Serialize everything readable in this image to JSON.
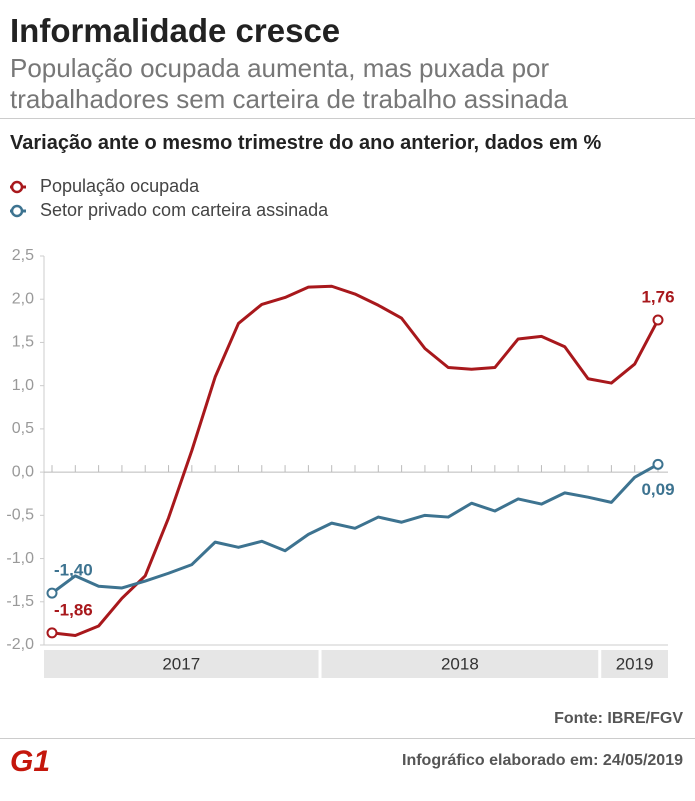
{
  "header": {
    "title": "Informalidade cresce",
    "subtitle": "População ocupada aumenta, mas puxada por trabalhadores sem carteira de trabalho assinada"
  },
  "chart_data": {
    "type": "line",
    "title": "Variação ante o mesmo trimestre do ano anterior, dados em %",
    "categories": [
      null,
      null,
      null,
      null,
      null,
      null,
      null,
      null,
      null,
      null,
      null,
      null,
      null,
      null,
      null,
      null,
      null,
      null,
      null,
      null,
      null,
      null,
      null,
      null,
      null,
      null,
      null
    ],
    "x_groups": [
      {
        "label": "2017",
        "count": 12
      },
      {
        "label": "2018",
        "count": 12
      },
      {
        "label": "2019",
        "count": 3
      }
    ],
    "series": [
      {
        "name": "População ocupada",
        "color": "#a8181c",
        "values": [
          -1.86,
          -1.89,
          -1.78,
          -1.46,
          -1.2,
          -0.53,
          0.25,
          1.1,
          1.72,
          1.94,
          2.02,
          2.14,
          2.15,
          2.06,
          1.93,
          1.78,
          1.43,
          1.21,
          1.19,
          1.21,
          1.54,
          1.57,
          1.45,
          1.08,
          1.03,
          1.25,
          1.76
        ],
        "value_labels": [
          "-1,86",
          null,
          null,
          null,
          null,
          null,
          null,
          null,
          null,
          null,
          null,
          null,
          null,
          null,
          null,
          null,
          null,
          null,
          null,
          null,
          null,
          null,
          null,
          null,
          null,
          null,
          "1,76"
        ]
      },
      {
        "name": "Setor privado com carteira assinada",
        "color": "#3d7390",
        "values": [
          -1.4,
          -1.2,
          -1.32,
          -1.34,
          -1.26,
          -1.17,
          -1.07,
          -0.81,
          -0.87,
          -0.8,
          -0.91,
          -0.72,
          -0.59,
          -0.65,
          -0.52,
          -0.58,
          -0.5,
          -0.52,
          -0.36,
          -0.45,
          -0.31,
          -0.37,
          -0.24,
          -0.29,
          -0.35,
          -0.06,
          0.09
        ],
        "value_labels": [
          "-1,40",
          null,
          null,
          null,
          null,
          null,
          null,
          null,
          null,
          null,
          null,
          null,
          null,
          null,
          null,
          null,
          null,
          null,
          null,
          null,
          null,
          null,
          null,
          null,
          null,
          null,
          "0,09"
        ]
      }
    ],
    "ylim": [
      -2.0,
      2.5
    ],
    "yticks": [
      {
        "value": -2.0,
        "label": "-2,0"
      },
      {
        "value": -1.5,
        "label": "-1,5"
      },
      {
        "value": -1.0,
        "label": "-1,0"
      },
      {
        "value": -0.5,
        "label": "-0,5"
      },
      {
        "value": 0.0,
        "label": "0,0"
      },
      {
        "value": 0.5,
        "label": "0,5"
      },
      {
        "value": 1.0,
        "label": "1,0"
      },
      {
        "value": 1.5,
        "label": "1,5"
      },
      {
        "value": 2.0,
        "label": "2,0"
      },
      {
        "value": 2.5,
        "label": "2,5"
      }
    ],
    "source": "Fonte: IBRE/FGV"
  },
  "footer": {
    "logo": "G1",
    "date": "Infográfico elaborado em: 24/05/2019"
  }
}
